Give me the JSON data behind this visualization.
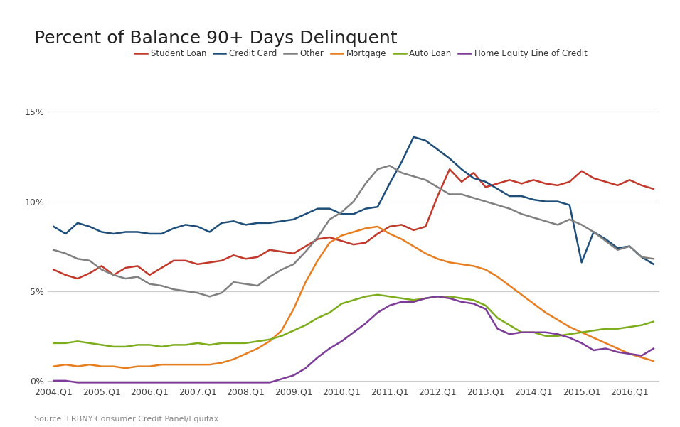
{
  "title": "Percent of Balance 90+ Days Delinquent",
  "source": "Source: FRBNY Consumer Credit Panel/Equifax",
  "background_color": "#ffffff",
  "grid_color": "#cccccc",
  "ylim": [
    -0.002,
    0.16
  ],
  "yticks": [
    0,
    0.05,
    0.1,
    0.15
  ],
  "ytick_labels": [
    "0%",
    "5%",
    "10%",
    "15%"
  ],
  "series": {
    "Student Loan": {
      "color": "#c0392b",
      "data": [
        0.062,
        0.059,
        0.057,
        0.06,
        0.064,
        0.059,
        0.063,
        0.064,
        0.059,
        0.063,
        0.067,
        0.067,
        0.065,
        0.066,
        0.067,
        0.07,
        0.068,
        0.069,
        0.073,
        0.072,
        0.071,
        0.075,
        0.079,
        0.08,
        0.078,
        0.076,
        0.077,
        0.082,
        0.086,
        0.087,
        0.084,
        0.086,
        0.103,
        0.118,
        0.111,
        0.116,
        0.108,
        0.11,
        0.112,
        0.11,
        0.112,
        0.11,
        0.109,
        0.111,
        0.117,
        0.113,
        0.111,
        0.109,
        0.112,
        0.109,
        0.107
      ]
    },
    "Credit Card": {
      "color": "#1f4e79",
      "data": [
        0.086,
        0.082,
        0.088,
        0.086,
        0.083,
        0.082,
        0.083,
        0.083,
        0.082,
        0.082,
        0.085,
        0.087,
        0.086,
        0.083,
        0.088,
        0.089,
        0.087,
        0.088,
        0.088,
        0.089,
        0.09,
        0.093,
        0.096,
        0.096,
        0.093,
        0.093,
        0.096,
        0.097,
        0.11,
        0.122,
        0.136,
        0.134,
        0.129,
        0.124,
        0.118,
        0.113,
        0.111,
        0.107,
        0.103,
        0.103,
        0.101,
        0.1,
        0.1,
        0.098,
        0.066,
        0.083,
        0.079,
        0.074,
        0.075,
        0.069,
        0.065
      ]
    },
    "Other": {
      "color": "#808080",
      "data": [
        0.073,
        0.071,
        0.068,
        0.067,
        0.062,
        0.059,
        0.057,
        0.058,
        0.054,
        0.053,
        0.051,
        0.05,
        0.049,
        0.047,
        0.049,
        0.055,
        0.054,
        0.053,
        0.058,
        0.062,
        0.065,
        0.072,
        0.08,
        0.09,
        0.094,
        0.1,
        0.11,
        0.118,
        0.12,
        0.116,
        0.114,
        0.112,
        0.108,
        0.104,
        0.104,
        0.102,
        0.1,
        0.098,
        0.096,
        0.093,
        0.091,
        0.089,
        0.087,
        0.09,
        0.087,
        0.083,
        0.078,
        0.073,
        0.075,
        0.069,
        0.068
      ]
    },
    "Mortgage": {
      "color": "#e67e22",
      "data": [
        0.008,
        0.009,
        0.008,
        0.009,
        0.008,
        0.008,
        0.007,
        0.008,
        0.008,
        0.009,
        0.009,
        0.009,
        0.009,
        0.009,
        0.01,
        0.012,
        0.015,
        0.018,
        0.022,
        0.028,
        0.04,
        0.055,
        0.067,
        0.077,
        0.081,
        0.083,
        0.085,
        0.086,
        0.082,
        0.079,
        0.075,
        0.071,
        0.068,
        0.066,
        0.065,
        0.064,
        0.062,
        0.058,
        0.053,
        0.048,
        0.043,
        0.038,
        0.034,
        0.03,
        0.027,
        0.024,
        0.021,
        0.018,
        0.015,
        0.013,
        0.011
      ]
    },
    "Auto Loan": {
      "color": "#7dac1d",
      "data": [
        0.021,
        0.021,
        0.022,
        0.021,
        0.02,
        0.019,
        0.019,
        0.02,
        0.02,
        0.019,
        0.02,
        0.02,
        0.021,
        0.02,
        0.021,
        0.021,
        0.021,
        0.022,
        0.023,
        0.025,
        0.028,
        0.031,
        0.035,
        0.038,
        0.043,
        0.045,
        0.047,
        0.048,
        0.047,
        0.046,
        0.045,
        0.046,
        0.047,
        0.047,
        0.046,
        0.045,
        0.042,
        0.035,
        0.031,
        0.027,
        0.027,
        0.025,
        0.025,
        0.026,
        0.027,
        0.028,
        0.029,
        0.029,
        0.03,
        0.031,
        0.033
      ]
    },
    "Home Equity Line of Credit": {
      "color": "#7d3c98",
      "data": [
        0.0,
        0.0,
        -0.001,
        -0.001,
        -0.001,
        -0.001,
        -0.001,
        -0.001,
        -0.001,
        -0.001,
        -0.001,
        -0.001,
        -0.001,
        -0.001,
        -0.001,
        -0.001,
        -0.001,
        -0.001,
        -0.001,
        0.001,
        0.003,
        0.007,
        0.013,
        0.018,
        0.022,
        0.027,
        0.032,
        0.038,
        0.042,
        0.044,
        0.044,
        0.046,
        0.047,
        0.046,
        0.044,
        0.043,
        0.04,
        0.029,
        0.026,
        0.027,
        0.027,
        0.027,
        0.026,
        0.024,
        0.021,
        0.017,
        0.018,
        0.016,
        0.015,
        0.014,
        0.018
      ]
    }
  },
  "x_tick_labels": [
    "2004:Q1",
    "2005:Q1",
    "2006:Q1",
    "2007:Q1",
    "2008:Q1",
    "2009:Q1",
    "2010:Q1",
    "2011:Q1",
    "2012:Q1",
    "2013:Q1",
    "2014:Q1",
    "2015:Q1",
    "2016:Q1"
  ],
  "x_tick_positions": [
    0,
    4,
    8,
    12,
    16,
    20,
    24,
    28,
    32,
    36,
    40,
    44,
    48
  ],
  "n_quarters": 51
}
